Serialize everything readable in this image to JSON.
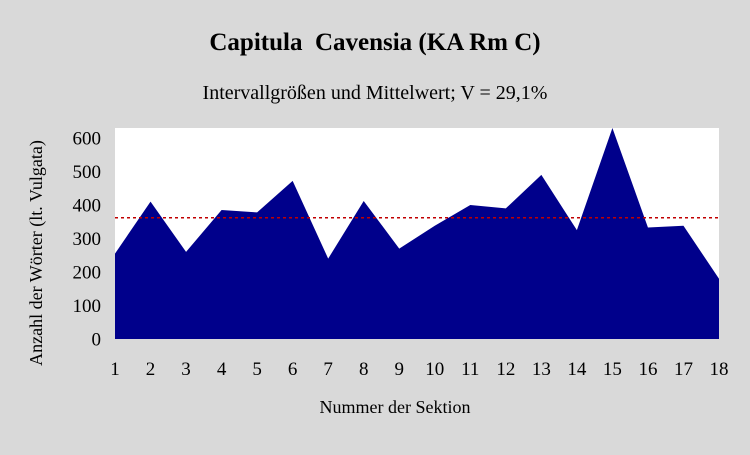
{
  "chart_data": {
    "type": "area",
    "title": "Capitula  Cavensia (KA Rm C)",
    "subtitle": "Intervallgrößen und Mittelwert; V = 29,1%",
    "xlabel": "Nummer der Sektion",
    "ylabel": "Anzahl der Wörter (lt. Vulgata)",
    "x": [
      1,
      2,
      3,
      4,
      5,
      6,
      7,
      8,
      9,
      10,
      11,
      12,
      13,
      14,
      15,
      16,
      17,
      18
    ],
    "series": [
      {
        "values": [
          255,
          410,
          260,
          385,
          378,
          472,
          240,
          412,
          270,
          338,
          400,
          390,
          490,
          325,
          630,
          333,
          338,
          180
        ],
        "color": "#00008b"
      }
    ],
    "mean": {
      "value": 362,
      "color": "#c00000",
      "style": "dashed"
    },
    "ylim": [
      0,
      630
    ],
    "yticks": [
      0,
      100,
      200,
      300,
      400,
      500,
      600
    ],
    "grid": false,
    "plot_background": "#ffffff",
    "chart_background": "#d9d9d9"
  }
}
